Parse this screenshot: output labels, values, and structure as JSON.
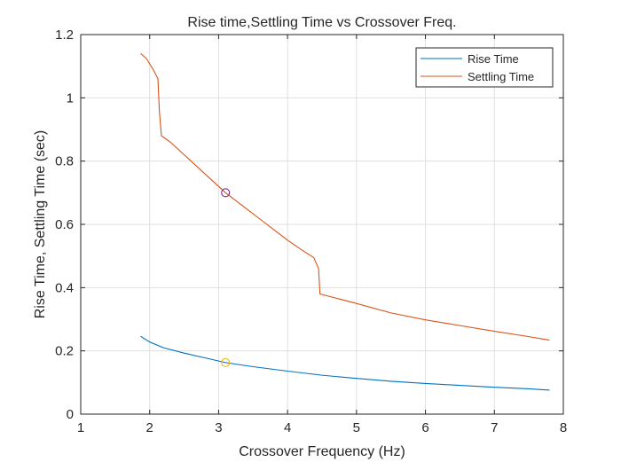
{
  "chart_data": {
    "type": "line",
    "title": "Rise time,Settling Time vs Crossover Freq.",
    "xlabel": "Crossover Frequency (Hz)",
    "ylabel": "Rise Time,  Settling Time (sec)",
    "xlim": [
      1,
      8
    ],
    "ylim": [
      0,
      1.2
    ],
    "xticks": [
      1,
      2,
      3,
      4,
      5,
      6,
      7,
      8
    ],
    "xtick_labels": [
      "1",
      "2",
      "3",
      "4",
      "5",
      "6",
      "7",
      "8"
    ],
    "yticks": [
      0,
      0.2,
      0.4,
      0.6,
      0.8,
      1.0,
      1.2
    ],
    "ytick_labels": [
      "0",
      "0.2",
      "0.4",
      "0.6",
      "0.8",
      "1",
      "1.2"
    ],
    "grid": true,
    "legend_position": "top-right",
    "series": [
      {
        "name": "Rise Time",
        "color": "#0072BD",
        "x": [
          1.87,
          2.0,
          2.2,
          2.5,
          2.8,
          3.1,
          3.5,
          4.0,
          4.5,
          5.0,
          5.5,
          6.0,
          6.5,
          7.0,
          7.5,
          7.8
        ],
        "y": [
          0.246,
          0.228,
          0.21,
          0.193,
          0.178,
          0.163,
          0.15,
          0.136,
          0.123,
          0.113,
          0.104,
          0.097,
          0.091,
          0.085,
          0.08,
          0.076
        ]
      },
      {
        "name": "Settling Time",
        "color": "#D95319",
        "x": [
          1.87,
          1.95,
          2.05,
          2.12,
          2.14,
          2.17,
          2.3,
          2.5,
          2.7,
          3.1,
          3.4,
          3.7,
          4.0,
          4.2,
          4.38,
          4.45,
          4.47,
          5.0,
          5.5,
          6.0,
          6.5,
          7.0,
          7.5,
          7.8
        ],
        "y": [
          1.14,
          1.125,
          1.09,
          1.06,
          0.96,
          0.88,
          0.86,
          0.82,
          0.78,
          0.7,
          0.65,
          0.6,
          0.55,
          0.52,
          0.495,
          0.46,
          0.38,
          0.35,
          0.32,
          0.298,
          0.28,
          0.262,
          0.245,
          0.234
        ]
      }
    ],
    "markers": [
      {
        "series": "Settling Time",
        "x": 3.1,
        "y": 0.7,
        "shape": "circle",
        "color": "#7E2F8E"
      },
      {
        "series": "Rise Time",
        "x": 3.1,
        "y": 0.163,
        "shape": "circle",
        "color": "#EDB120"
      }
    ]
  }
}
